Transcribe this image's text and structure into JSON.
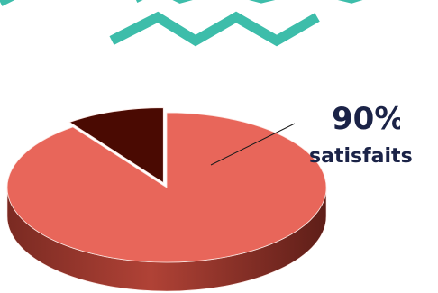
{
  "chart_data": {
    "type": "pie",
    "style": "3d-exploded",
    "slices": [
      {
        "label": "satisfaits",
        "value": 90,
        "color": "#e8665a"
      },
      {
        "label": "",
        "value": 10,
        "color": "#4a0a02"
      }
    ],
    "annotation": {
      "value_text": "90%",
      "label_text": "satisfaits"
    }
  },
  "decoration": {
    "zigzag_color": "#3dbdaa",
    "text_color": "#1b2347"
  }
}
